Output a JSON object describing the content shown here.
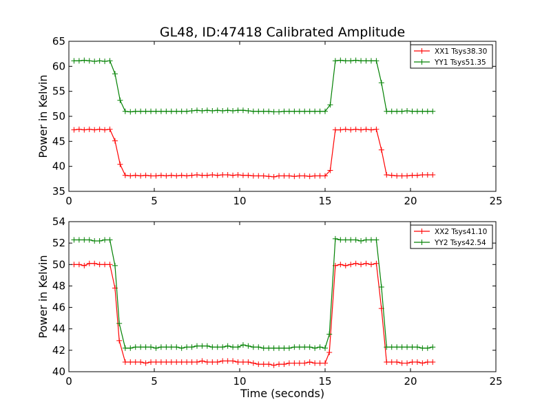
{
  "chart_data": [
    {
      "type": "line",
      "title": "GL48, ID:47418 Calibrated Amplitude",
      "xlabel": "",
      "ylabel": "Power in Kelvin",
      "xlim": [
        0,
        25
      ],
      "ylim": [
        35,
        65
      ],
      "xticks": [
        "0",
        "5",
        "10",
        "15",
        "20",
        "25"
      ],
      "yticks": [
        "35",
        "40",
        "45",
        "50",
        "55",
        "60",
        "65"
      ],
      "legend_position": "top-right",
      "x": [
        0.3,
        0.6,
        0.9,
        1.2,
        1.5,
        1.8,
        2.1,
        2.4,
        2.7,
        3.0,
        3.3,
        3.6,
        3.9,
        4.2,
        4.5,
        4.8,
        5.1,
        5.4,
        5.7,
        6.0,
        6.3,
        6.6,
        6.9,
        7.2,
        7.5,
        7.8,
        8.1,
        8.4,
        8.7,
        9.0,
        9.3,
        9.6,
        9.9,
        10.2,
        10.5,
        10.8,
        11.1,
        11.4,
        11.7,
        12.0,
        12.3,
        12.6,
        12.9,
        13.2,
        13.5,
        13.8,
        14.1,
        14.4,
        14.7,
        15.0,
        15.3,
        15.6,
        15.9,
        16.2,
        16.5,
        16.8,
        17.1,
        17.4,
        17.7,
        18.0,
        18.3,
        18.6,
        18.9,
        19.2,
        19.5,
        19.8,
        20.1,
        20.4,
        20.7,
        21.0,
        21.3
      ],
      "series": [
        {
          "name": "XX1 Tsys38.30",
          "color": "#ff0000",
          "values": [
            47.3,
            47.4,
            47.3,
            47.4,
            47.3,
            47.4,
            47.3,
            47.4,
            45.1,
            40.4,
            38.2,
            38.1,
            38.2,
            38.1,
            38.2,
            38.1,
            38.1,
            38.2,
            38.1,
            38.2,
            38.1,
            38.2,
            38.1,
            38.2,
            38.3,
            38.2,
            38.2,
            38.3,
            38.2,
            38.3,
            38.3,
            38.2,
            38.3,
            38.2,
            38.2,
            38.1,
            38.1,
            38.1,
            38.0,
            37.9,
            38.1,
            38.1,
            38.1,
            38.0,
            38.1,
            38.1,
            38.0,
            38.1,
            38.1,
            38.1,
            39.2,
            47.3,
            47.3,
            47.4,
            47.3,
            47.4,
            47.3,
            47.4,
            47.3,
            47.4,
            43.3,
            38.3,
            38.2,
            38.1,
            38.1,
            38.1,
            38.2,
            38.2,
            38.3,
            38.3,
            38.3
          ]
        },
        {
          "name": "YY1 Tsys51.35",
          "color": "#008000",
          "values": [
            61.1,
            61.1,
            61.2,
            61.1,
            61.0,
            61.1,
            61.0,
            61.1,
            58.5,
            53.2,
            51.0,
            50.9,
            51.0,
            51.0,
            51.0,
            51.0,
            51.0,
            51.0,
            51.0,
            51.0,
            51.0,
            51.0,
            51.0,
            51.1,
            51.2,
            51.1,
            51.2,
            51.1,
            51.2,
            51.1,
            51.2,
            51.1,
            51.2,
            51.2,
            51.1,
            51.0,
            51.0,
            51.0,
            51.0,
            50.9,
            50.9,
            51.0,
            51.0,
            51.0,
            51.0,
            51.0,
            51.0,
            51.0,
            51.0,
            51.0,
            52.3,
            61.1,
            61.2,
            61.1,
            61.1,
            61.2,
            61.1,
            61.1,
            61.1,
            61.1,
            56.7,
            51.0,
            51.0,
            51.0,
            51.0,
            51.1,
            51.0,
            51.0,
            51.0,
            51.0,
            51.0
          ]
        }
      ]
    },
    {
      "type": "line",
      "title": "",
      "xlabel": "Time (seconds)",
      "ylabel": "Power in Kelvin",
      "xlim": [
        0,
        25
      ],
      "ylim": [
        40,
        54
      ],
      "xticks": [
        "0",
        "5",
        "10",
        "15",
        "20",
        "25"
      ],
      "yticks": [
        "40",
        "42",
        "44",
        "46",
        "48",
        "50",
        "52",
        "54"
      ],
      "legend_position": "top-right",
      "x": [
        0.3,
        0.6,
        0.9,
        1.2,
        1.5,
        1.8,
        2.1,
        2.4,
        2.7,
        2.95,
        3.3,
        3.6,
        3.9,
        4.2,
        4.5,
        4.8,
        5.1,
        5.4,
        5.7,
        6.0,
        6.3,
        6.6,
        6.9,
        7.2,
        7.5,
        7.8,
        8.1,
        8.4,
        8.7,
        9.0,
        9.3,
        9.6,
        9.9,
        10.2,
        10.5,
        10.8,
        11.1,
        11.4,
        11.7,
        12.0,
        12.3,
        12.6,
        12.9,
        13.2,
        13.5,
        13.8,
        14.1,
        14.4,
        14.7,
        15.0,
        15.25,
        15.6,
        15.9,
        16.2,
        16.5,
        16.8,
        17.1,
        17.4,
        17.7,
        18.0,
        18.3,
        18.6,
        18.9,
        19.2,
        19.5,
        19.8,
        20.1,
        20.4,
        20.7,
        21.0,
        21.3
      ],
      "series": [
        {
          "name": "XX2 Tsys41.10",
          "color": "#ff0000",
          "values": [
            50.0,
            50.0,
            49.9,
            50.1,
            50.1,
            50.0,
            50.0,
            50.0,
            47.8,
            42.9,
            40.9,
            40.9,
            40.9,
            40.9,
            40.8,
            40.9,
            40.9,
            40.9,
            40.9,
            40.9,
            40.9,
            40.9,
            40.9,
            40.9,
            40.9,
            41.0,
            40.9,
            40.9,
            40.9,
            41.0,
            41.0,
            41.0,
            40.9,
            40.9,
            40.9,
            40.8,
            40.7,
            40.7,
            40.7,
            40.6,
            40.7,
            40.7,
            40.8,
            40.8,
            40.8,
            40.8,
            40.9,
            40.8,
            40.8,
            40.8,
            41.8,
            49.9,
            50.0,
            49.9,
            50.0,
            50.1,
            50.0,
            50.1,
            50.0,
            50.1,
            45.9,
            40.9,
            40.9,
            40.9,
            40.8,
            40.8,
            40.9,
            40.9,
            40.8,
            40.9,
            40.9
          ]
        },
        {
          "name": "YY2 Tsys42.54",
          "color": "#008000",
          "values": [
            52.3,
            52.3,
            52.3,
            52.3,
            52.2,
            52.2,
            52.3,
            52.3,
            49.9,
            44.5,
            42.2,
            42.2,
            42.3,
            42.3,
            42.3,
            42.3,
            42.2,
            42.3,
            42.3,
            42.3,
            42.3,
            42.2,
            42.3,
            42.3,
            42.4,
            42.4,
            42.4,
            42.3,
            42.3,
            42.3,
            42.4,
            42.3,
            42.3,
            42.5,
            42.4,
            42.3,
            42.3,
            42.2,
            42.2,
            42.2,
            42.2,
            42.2,
            42.2,
            42.3,
            42.3,
            42.3,
            42.3,
            42.2,
            42.3,
            42.2,
            43.5,
            52.4,
            52.3,
            52.3,
            52.3,
            52.3,
            52.2,
            52.3,
            52.3,
            52.3,
            47.9,
            42.3,
            42.3,
            42.3,
            42.3,
            42.3,
            42.3,
            42.3,
            42.2,
            42.2,
            42.3
          ]
        }
      ]
    }
  ]
}
